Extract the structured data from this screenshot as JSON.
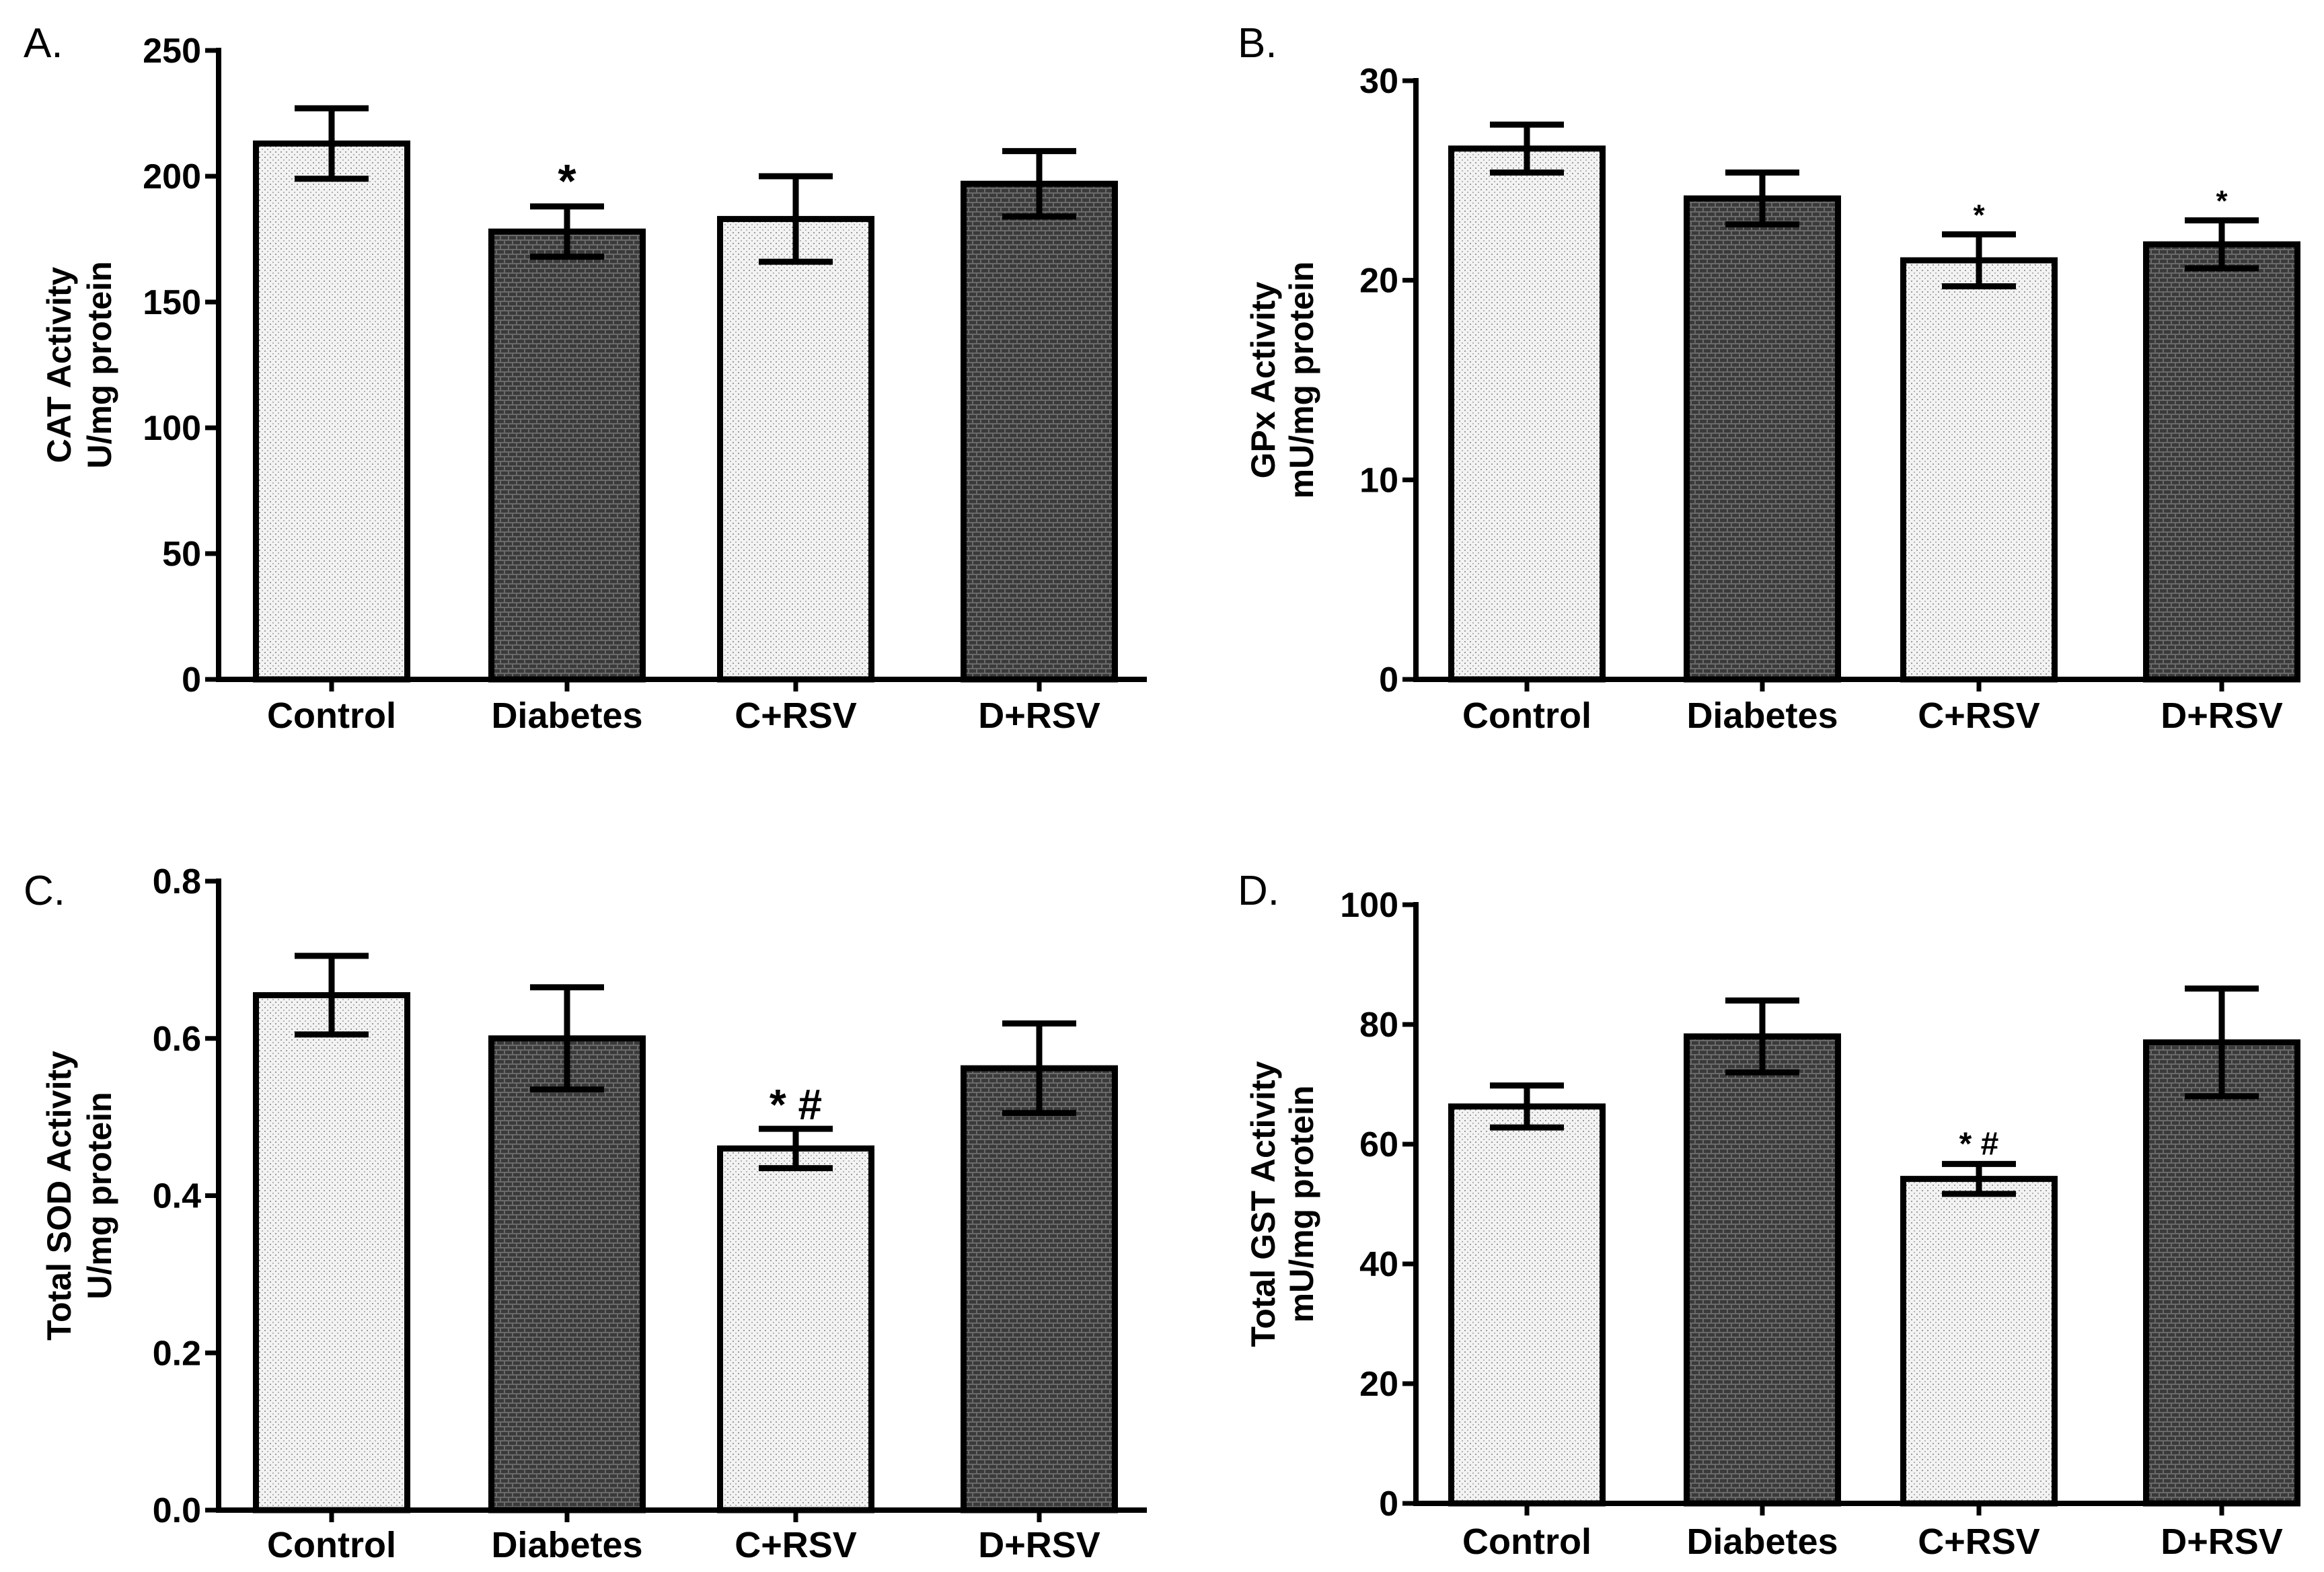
{
  "colors": {
    "ink": "#000000",
    "background": "#ffffff"
  },
  "chart_data": [
    {
      "type": "bar",
      "panel": "A.",
      "ylabel": [
        "CAT Activity",
        "U/mg protein"
      ],
      "categories": [
        "Control",
        "Diabetes",
        "C+RSV",
        "D+RSV"
      ],
      "values": [
        213,
        178,
        183,
        197
      ],
      "errors": [
        14,
        10,
        17,
        13
      ],
      "annotations": [
        "",
        "*",
        "",
        ""
      ],
      "ylim": [
        0,
        250
      ],
      "yticks": [
        0,
        50,
        100,
        150,
        200,
        250
      ],
      "ytick_labels": [
        "0",
        "50",
        "100",
        "150",
        "200",
        "250"
      ],
      "patterns": [
        "light",
        "dark",
        "light",
        "dark"
      ]
    },
    {
      "type": "bar",
      "panel": "B.",
      "ylabel": [
        "GPx Activity",
        "mU/mg protein"
      ],
      "categories": [
        "Control",
        "Diabetes",
        "C+RSV",
        "D+RSV"
      ],
      "values": [
        26.6,
        24.1,
        21.0,
        21.8
      ],
      "errors": [
        1.2,
        1.3,
        1.3,
        1.2
      ],
      "annotations": [
        "",
        "",
        "*",
        "*"
      ],
      "ylim": [
        0,
        30
      ],
      "yticks": [
        0,
        10,
        20,
        30
      ],
      "ytick_labels": [
        "0",
        "10",
        "20",
        "30"
      ],
      "patterns": [
        "light",
        "dark",
        "light",
        "dark"
      ]
    },
    {
      "type": "bar",
      "panel": "C.",
      "ylabel": [
        "Total SOD Activity",
        "U/mg protein"
      ],
      "categories": [
        "Control",
        "Diabetes",
        "C+RSV",
        "D+RSV"
      ],
      "values": [
        0.655,
        0.6,
        0.46,
        0.562
      ],
      "errors": [
        0.05,
        0.065,
        0.025,
        0.057
      ],
      "annotations": [
        "",
        "",
        "* #",
        ""
      ],
      "ylim": [
        0,
        0.8
      ],
      "yticks": [
        0,
        0.2,
        0.4,
        0.6,
        0.8
      ],
      "ytick_labels": [
        "0.0",
        "0.2",
        "0.4",
        "0.6",
        "0.8"
      ],
      "patterns": [
        "light",
        "dark",
        "light",
        "dark"
      ]
    },
    {
      "type": "bar",
      "panel": "D.",
      "ylabel": [
        "Total GST Activity",
        "mU/mg protein"
      ],
      "categories": [
        "Control",
        "Diabetes",
        "C+RSV",
        "D+RSV"
      ],
      "values": [
        66.3,
        78,
        54.2,
        77
      ],
      "errors": [
        3.5,
        6,
        2.5,
        9
      ],
      "annotations": [
        "",
        "",
        "* #",
        ""
      ],
      "ylim": [
        0,
        100
      ],
      "yticks": [
        0,
        20,
        40,
        60,
        80,
        100
      ],
      "ytick_labels": [
        "0",
        "20",
        "40",
        "60",
        "80",
        "100"
      ],
      "patterns": [
        "light",
        "dark",
        "light",
        "dark"
      ]
    }
  ]
}
